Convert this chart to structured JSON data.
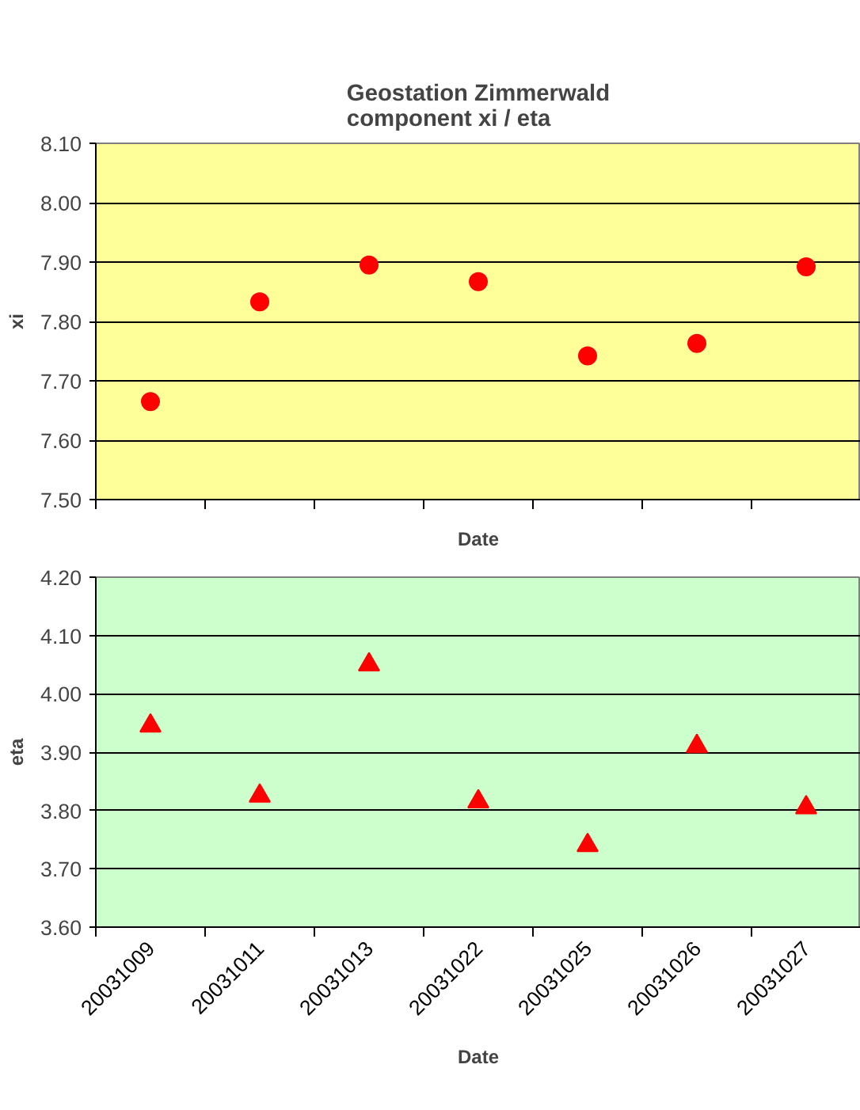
{
  "chart_data": [
    {
      "type": "scatter",
      "title": "Geostation Zimmerwald\ncomponent xi / eta",
      "xlabel": "Date",
      "ylabel": "xi",
      "categories": [
        "20031009",
        "20031011",
        "20031013",
        "20031022",
        "20031025",
        "20031026",
        "20031027"
      ],
      "tick_labels": "y",
      "series": [
        {
          "color": "#ff0000",
          "values": [
            7.665,
            7.833,
            7.895,
            7.867,
            7.742,
            7.763,
            7.892
          ]
        }
      ],
      "ylim": [
        7.5,
        8.1
      ],
      "yticks": [
        {
          "value": 7.5,
          "label": "7.50"
        },
        {
          "value": 7.6,
          "label": "7.60"
        },
        {
          "value": 7.7,
          "label": "7.70"
        },
        {
          "value": 7.8,
          "label": "7.80"
        },
        {
          "value": 7.9,
          "label": "7.90"
        },
        {
          "value": 8.0,
          "label": "8.00"
        },
        {
          "value": 8.1,
          "label": "8.10"
        }
      ],
      "grid": "y",
      "marker": "circle"
    },
    {
      "type": "scatter",
      "xlabel": "Date",
      "ylabel": "eta",
      "categories": [
        "20031009",
        "20031011",
        "20031013",
        "20031022",
        "20031025",
        "20031026",
        "20031027"
      ],
      "series": [
        {
          "color": "#ff0000",
          "values": [
            3.945,
            3.825,
            4.05,
            3.815,
            3.74,
            3.91,
            3.805
          ]
        }
      ],
      "ylim": [
        3.6,
        4.2
      ],
      "yticks": [
        {
          "value": 3.6,
          "label": "3.60"
        },
        {
          "value": 3.7,
          "label": "3.70"
        },
        {
          "value": 3.8,
          "label": "3.80"
        },
        {
          "value": 3.9,
          "label": "3.90"
        },
        {
          "value": 4.0,
          "label": "4.00"
        },
        {
          "value": 4.1,
          "label": "4.10"
        },
        {
          "value": 4.2,
          "label": "4.20"
        }
      ],
      "grid": "y",
      "marker": "triangle"
    }
  ]
}
